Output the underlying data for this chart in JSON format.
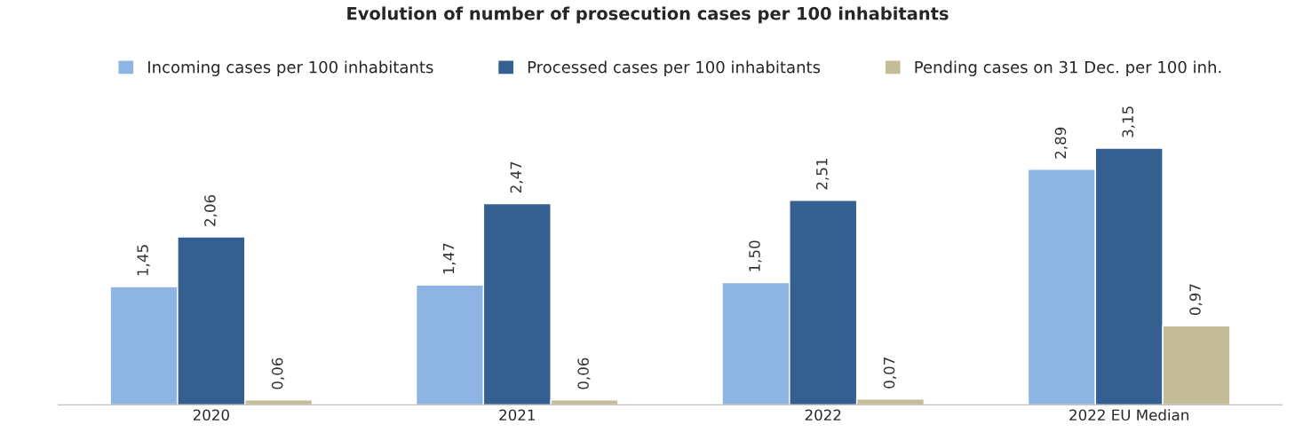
{
  "chart_data": {
    "type": "bar",
    "title": "Evolution of number of prosecution cases per 100 inhabitants",
    "categories": [
      "2020",
      "2021",
      "2022",
      "2022 EU Median"
    ],
    "series": [
      {
        "name": "Incoming cases per 100 inhabitants",
        "color": "#8eb4e3",
        "values": [
          1.45,
          1.47,
          1.5,
          2.89
        ],
        "value_labels": [
          "1,45",
          "1,47",
          "1,50",
          "2,89"
        ]
      },
      {
        "name": "Processed cases per 100 inhabitants",
        "color": "#355f91",
        "values": [
          2.06,
          2.47,
          2.51,
          3.15
        ],
        "value_labels": [
          "2,06",
          "2,47",
          "2,51",
          "3,15"
        ]
      },
      {
        "name": "Pending cases on 31 Dec. per 100 inh.",
        "color": "#c4bd97",
        "values": [
          0.06,
          0.06,
          0.07,
          0.97
        ],
        "value_labels": [
          "0,06",
          "0,06",
          "0,07",
          "0,97"
        ]
      }
    ],
    "legend": "top",
    "grid": false
  }
}
